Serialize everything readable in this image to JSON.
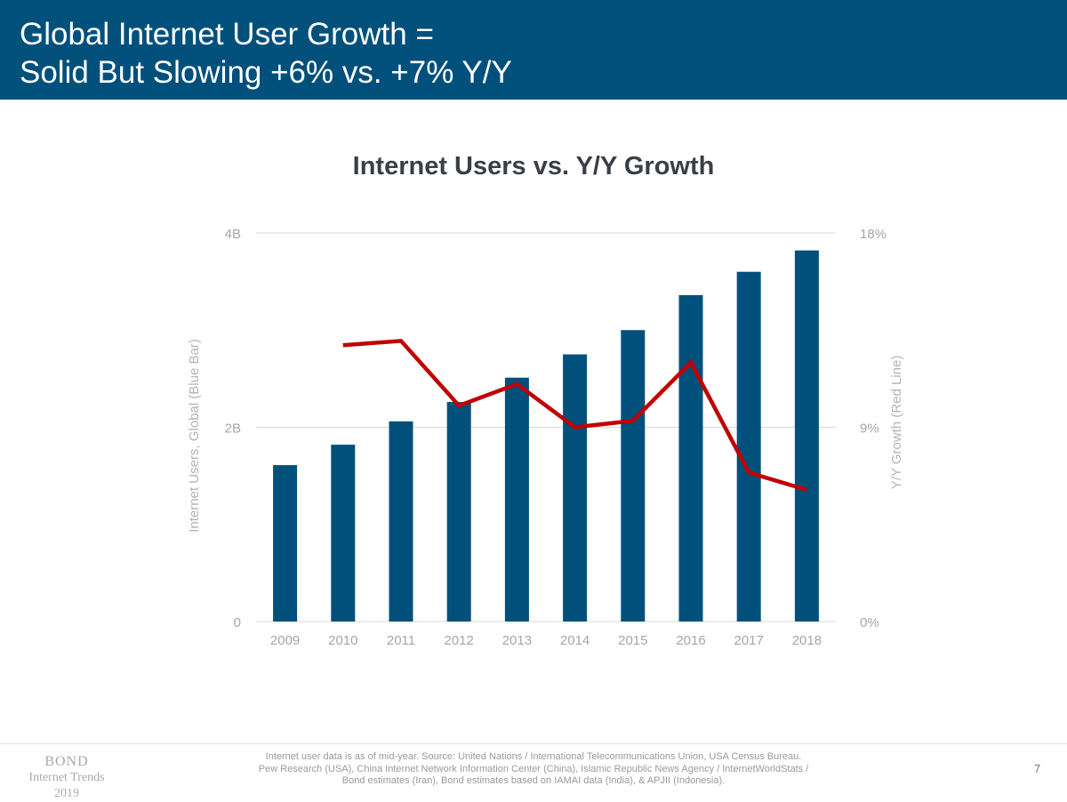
{
  "header": {
    "title": "Global Internet User Growth =\nSolid But Slowing +6% vs. +7% Y/Y"
  },
  "chart_data": {
    "type": "bar+line",
    "title": "Internet Users vs. Y/Y Growth",
    "categories": [
      "2009",
      "2010",
      "2011",
      "2012",
      "2013",
      "2014",
      "2015",
      "2016",
      "2017",
      "2018"
    ],
    "series": [
      {
        "name": "Internet Users, Global (Blue Bar)",
        "type": "bar",
        "axis": "left",
        "color": "#00507c",
        "values": [
          1.61,
          1.82,
          2.06,
          2.26,
          2.51,
          2.75,
          3.0,
          3.36,
          3.6,
          3.82
        ]
      },
      {
        "name": "Y/Y Growth (Red Line)",
        "type": "line",
        "axis": "right",
        "color": "#c00000",
        "values": [
          null,
          12.8,
          13.0,
          10.0,
          11.0,
          9.0,
          9.3,
          12.0,
          6.9,
          6.1
        ]
      }
    ],
    "ylabel": "Internet Users, Global (Blue Bar)",
    "y2label": "Y/Y Growth (Red Line)",
    "ylim": [
      0,
      4
    ],
    "y2lim": [
      0,
      18
    ],
    "yticks": [
      {
        "v": 0,
        "label": "0"
      },
      {
        "v": 2,
        "label": "2B"
      },
      {
        "v": 4,
        "label": "4B"
      }
    ],
    "y2ticks": [
      {
        "v": 0,
        "label": "0%"
      },
      {
        "v": 9,
        "label": "9%"
      },
      {
        "v": 18,
        "label": "18%"
      }
    ],
    "grid": true,
    "legend": "none"
  },
  "footer": {
    "brand": "BOND",
    "brand_sub": "Internet Trends",
    "brand_year": "2019",
    "source": "Internet user data is as of mid-year.  Source: United Nations / International Telecommunications Union, USA Census Bureau. Pew Research (USA), China Internet Network Information Center (China), Islamic Republic News Agency / InternetWorldStats / Bond estimates (Iran), Bond estimates based on IAMAI data (India), & APJII (Indonesia).",
    "page": "7"
  }
}
